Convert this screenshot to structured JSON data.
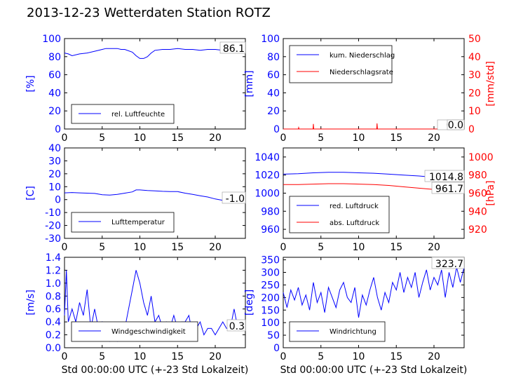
{
  "page": {
    "title": "2013-12-23 Wetterdaten Station ROTZ"
  },
  "chart_data": [
    {
      "id": "humidity",
      "type": "line",
      "xlim": [
        0,
        24
      ],
      "xticks": [
        0,
        5,
        10,
        15,
        20
      ],
      "ylim": [
        0,
        100
      ],
      "yticks": [
        0,
        20,
        40,
        60,
        80,
        100
      ],
      "ylabel": "[%]",
      "ylabel_color": "#0000ff",
      "xlabel": "",
      "current_value": "86.1",
      "legend": {
        "position": "lower-left",
        "entries": [
          "rel. Luftfeuchte"
        ]
      },
      "series": [
        {
          "name": "rel. Luftfeuchte",
          "color": "#0000ff",
          "axis": "left",
          "x": [
            0,
            0.5,
            1,
            2,
            3,
            4,
            5,
            5.5,
            6,
            6.5,
            7,
            7.5,
            8,
            9,
            9.5,
            10,
            10.5,
            11,
            11.5,
            12,
            13,
            14,
            15,
            16,
            17,
            18,
            19,
            20,
            21,
            22,
            23,
            24
          ],
          "y": [
            84,
            83,
            81,
            83,
            84,
            86,
            88,
            89,
            89,
            89,
            89,
            88,
            88,
            85,
            81,
            78,
            78,
            80,
            84,
            87,
            88,
            88,
            89,
            88,
            88,
            87,
            88,
            88,
            87,
            87,
            86,
            86
          ]
        }
      ]
    },
    {
      "id": "precipitation",
      "type": "line",
      "xlim": [
        0,
        24
      ],
      "xticks": [
        0,
        5,
        10,
        15,
        20
      ],
      "ylim": [
        0,
        100
      ],
      "yticks": [
        0,
        20,
        40,
        60,
        80,
        100
      ],
      "ylabel": "[mm]",
      "ylabel_color": "#0000ff",
      "y2lim": [
        0,
        50
      ],
      "y2ticks": [
        0,
        10,
        20,
        30,
        40,
        50
      ],
      "y2label": "[mm/std]",
      "y2label_color": "#ff0000",
      "xlabel": "",
      "current_values": [
        "0.0",
        "0.0"
      ],
      "legend": {
        "position": "top-left",
        "entries": [
          "kum. Niederschlag",
          "Niederschlagsrate"
        ]
      },
      "series": [
        {
          "name": "kum. Niederschlag",
          "color": "#0000ff",
          "axis": "left",
          "x": [
            0,
            24
          ],
          "y": [
            0,
            0
          ]
        },
        {
          "name": "Niederschlagsrate",
          "color": "#ff0000",
          "axis": "right",
          "x": [
            0,
            2.0,
            2.05,
            2.1,
            3.95,
            4.0,
            4.05,
            12.4,
            12.45,
            12.5,
            24
          ],
          "y": [
            0,
            0,
            0.8,
            0,
            0,
            2.8,
            0,
            0,
            3.1,
            0,
            0
          ]
        }
      ]
    },
    {
      "id": "temperature",
      "type": "line",
      "xlim": [
        0,
        24
      ],
      "xticks": [
        0,
        5,
        10,
        15,
        20
      ],
      "ylim": [
        -30,
        40
      ],
      "yticks": [
        -30,
        -20,
        -10,
        0,
        10,
        20,
        30,
        40
      ],
      "ylabel": "[C]",
      "ylabel_color": "#0000ff",
      "xlabel": "",
      "current_value": "-1.0",
      "legend": {
        "position": "lower-left",
        "entries": [
          "Lufttemperatur"
        ]
      },
      "series": [
        {
          "name": "Lufttemperatur",
          "color": "#0000ff",
          "axis": "left",
          "x": [
            0,
            1,
            2,
            3,
            4,
            5,
            6,
            7,
            8,
            9,
            9.5,
            10,
            11,
            12,
            13,
            14,
            15,
            16,
            17,
            18,
            19,
            20,
            21,
            22,
            23,
            24
          ],
          "y": [
            5.2,
            5.5,
            5.2,
            5,
            4.8,
            3.8,
            3.5,
            4,
            5,
            6,
            7.5,
            7.5,
            7,
            6.8,
            6.4,
            6.2,
            6.2,
            5,
            4,
            3,
            2,
            0.5,
            -0.6,
            -1,
            -1.2,
            -1
          ]
        }
      ]
    },
    {
      "id": "pressure",
      "type": "line",
      "xlim": [
        0,
        24
      ],
      "xticks": [
        0,
        5,
        10,
        15,
        20
      ],
      "ylim": [
        950,
        1050
      ],
      "yticks": [
        960,
        980,
        1000,
        1020,
        1040
      ],
      "ylabel": "",
      "y2lim": [
        910,
        1010
      ],
      "y2ticks": [
        920,
        940,
        960,
        980,
        1000
      ],
      "y2label": "[hPa]",
      "y2label_color": "#ff0000",
      "xlabel": "",
      "current_values": [
        "1014.8",
        "961.7"
      ],
      "legend": {
        "position": "lower-left",
        "entries": [
          "red. Luftdruck",
          "abs. Luftdruck"
        ]
      },
      "series": [
        {
          "name": "red. Luftdruck",
          "color": "#0000ff",
          "axis": "left",
          "x": [
            0,
            2,
            4,
            6,
            8,
            10,
            12,
            14,
            16,
            18,
            20,
            22,
            24
          ],
          "y": [
            1021,
            1021.5,
            1022.5,
            1023,
            1023,
            1022.5,
            1022,
            1021,
            1020,
            1019,
            1017.5,
            1016,
            1015
          ]
        },
        {
          "name": "abs. Luftdruck",
          "color": "#ff0000",
          "axis": "right",
          "x": [
            0,
            2,
            4,
            6,
            8,
            10,
            12,
            14,
            16,
            18,
            20,
            22,
            24
          ],
          "y": [
            969.5,
            969.5,
            970,
            970.5,
            970.5,
            970,
            969.5,
            968.5,
            967,
            965.5,
            964,
            962.5,
            961.5
          ]
        }
      ]
    },
    {
      "id": "wind-speed",
      "type": "line",
      "xlim": [
        0,
        24
      ],
      "xticks": [
        0,
        5,
        10,
        15,
        20
      ],
      "ylim": [
        0,
        1.4
      ],
      "yticks": [
        0.0,
        0.2,
        0.4,
        0.6,
        0.8,
        1.0,
        1.2,
        1.4
      ],
      "ylabel": "[m/s]",
      "ylabel_color": "#0000ff",
      "xlabel": "Std 00:00:00 UTC (+-23 Std Lokalzeit)",
      "current_value": "0.3",
      "legend": {
        "position": "lower-left",
        "entries": [
          "Windgeschwindigkeit"
        ]
      },
      "series": [
        {
          "name": "Windgeschwindigkeit",
          "color": "#0000ff",
          "axis": "left",
          "x": [
            0,
            0.25,
            0.5,
            1,
            1.5,
            2,
            2.5,
            3,
            3.5,
            4,
            4.5,
            5,
            5.5,
            6,
            6.5,
            7,
            7.5,
            8,
            8.5,
            9,
            9.5,
            10,
            10.5,
            11,
            11.5,
            12,
            12.5,
            13,
            13.5,
            14,
            14.5,
            15,
            15.5,
            16,
            16.5,
            17,
            17.5,
            18,
            18.5,
            19,
            19.5,
            20,
            20.5,
            21,
            21.5,
            22,
            22.5,
            23,
            23.5,
            24
          ],
          "y": [
            0.5,
            1.2,
            0.4,
            0.6,
            0.4,
            0.7,
            0.5,
            0.9,
            0.3,
            0.6,
            0.3,
            0.4,
            0.2,
            0.1,
            0.2,
            0.1,
            0.2,
            0.3,
            0.6,
            0.9,
            1.2,
            1.0,
            0.7,
            0.5,
            0.8,
            0.4,
            0.5,
            0.3,
            0.4,
            0.3,
            0.5,
            0.3,
            0.4,
            0.4,
            0.5,
            0.2,
            0.3,
            0.4,
            0.2,
            0.3,
            0.3,
            0.2,
            0.3,
            0.4,
            0.3,
            0.3,
            0.6,
            0.3,
            0.3,
            0.3
          ]
        }
      ]
    },
    {
      "id": "wind-direction",
      "type": "line",
      "xlim": [
        0,
        24
      ],
      "xticks": [
        0,
        5,
        10,
        15,
        20
      ],
      "ylim": [
        0,
        360
      ],
      "yticks": [
        0,
        50,
        100,
        150,
        200,
        250,
        300,
        350
      ],
      "ylabel": "[deg]",
      "ylabel_color": "#0000ff",
      "xlabel": "Std 00:00:00 UTC (+-23 Std Lokalzeit)",
      "current_value": "323.7",
      "legend": {
        "position": "lower-left",
        "entries": [
          "Windrichtung"
        ]
      },
      "series": [
        {
          "name": "Windrichtung",
          "color": "#0000ff",
          "axis": "left",
          "x": [
            0,
            0.5,
            1,
            1.5,
            2,
            2.5,
            3,
            3.5,
            4,
            4.5,
            5,
            5.5,
            6,
            6.5,
            7,
            7.5,
            8,
            8.5,
            9,
            9.5,
            10,
            10.5,
            11,
            11.5,
            12,
            12.5,
            13,
            13.5,
            14,
            14.5,
            15,
            15.5,
            16,
            16.5,
            17,
            17.5,
            18,
            18.5,
            19,
            19.5,
            20,
            20.5,
            21,
            21.5,
            22,
            22.5,
            23,
            23.5,
            24
          ],
          "y": [
            220,
            160,
            230,
            190,
            240,
            170,
            210,
            150,
            260,
            180,
            220,
            140,
            240,
            200,
            160,
            230,
            260,
            200,
            180,
            240,
            120,
            210,
            170,
            230,
            280,
            200,
            150,
            220,
            180,
            260,
            230,
            300,
            220,
            280,
            240,
            300,
            200,
            260,
            310,
            230,
            280,
            250,
            310,
            200,
            300,
            240,
            320,
            260,
            320
          ]
        }
      ]
    }
  ]
}
